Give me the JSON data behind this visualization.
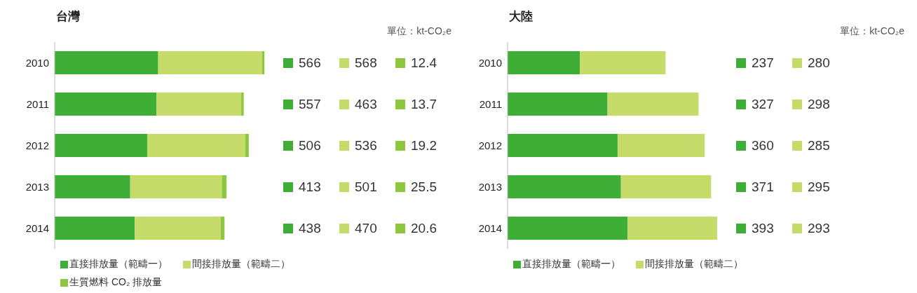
{
  "chart_data": [
    {
      "type": "bar",
      "title": "台灣",
      "orientation": "horizontal",
      "stacked": true,
      "categories": [
        "2010",
        "2011",
        "2012",
        "2013",
        "2014"
      ],
      "data_labels": true,
      "legend": "bottom",
      "annotations": [
        "單位：kt-CO₂e"
      ],
      "series": [
        {
          "name": "直接排放量（範疇一）",
          "color": "#3fae37",
          "values": [
            566,
            557,
            506,
            413,
            438
          ]
        },
        {
          "name": "間接排放量（範疇二）",
          "color": "#c5dc6a",
          "values": [
            568,
            463,
            536,
            501,
            470
          ]
        },
        {
          "name": "生質燃料 CO₂ 排放量",
          "color": "#8dc63f",
          "values": [
            12.4,
            13.7,
            19.2,
            25.5,
            20.6
          ]
        }
      ]
    },
    {
      "type": "bar",
      "title": "大陸",
      "orientation": "horizontal",
      "stacked": true,
      "categories": [
        "2010",
        "2011",
        "2012",
        "2013",
        "2014"
      ],
      "data_labels": true,
      "legend": "bottom",
      "annotations": [
        "單位：kt-CO₂e"
      ],
      "series": [
        {
          "name": "直接排放量（範疇一）",
          "color": "#3fae37",
          "values": [
            237,
            327,
            360,
            371,
            393
          ]
        },
        {
          "name": "間接排放量（範疇二）",
          "color": "#c5dc6a",
          "values": [
            280,
            298,
            285,
            295,
            293
          ]
        }
      ]
    }
  ]
}
